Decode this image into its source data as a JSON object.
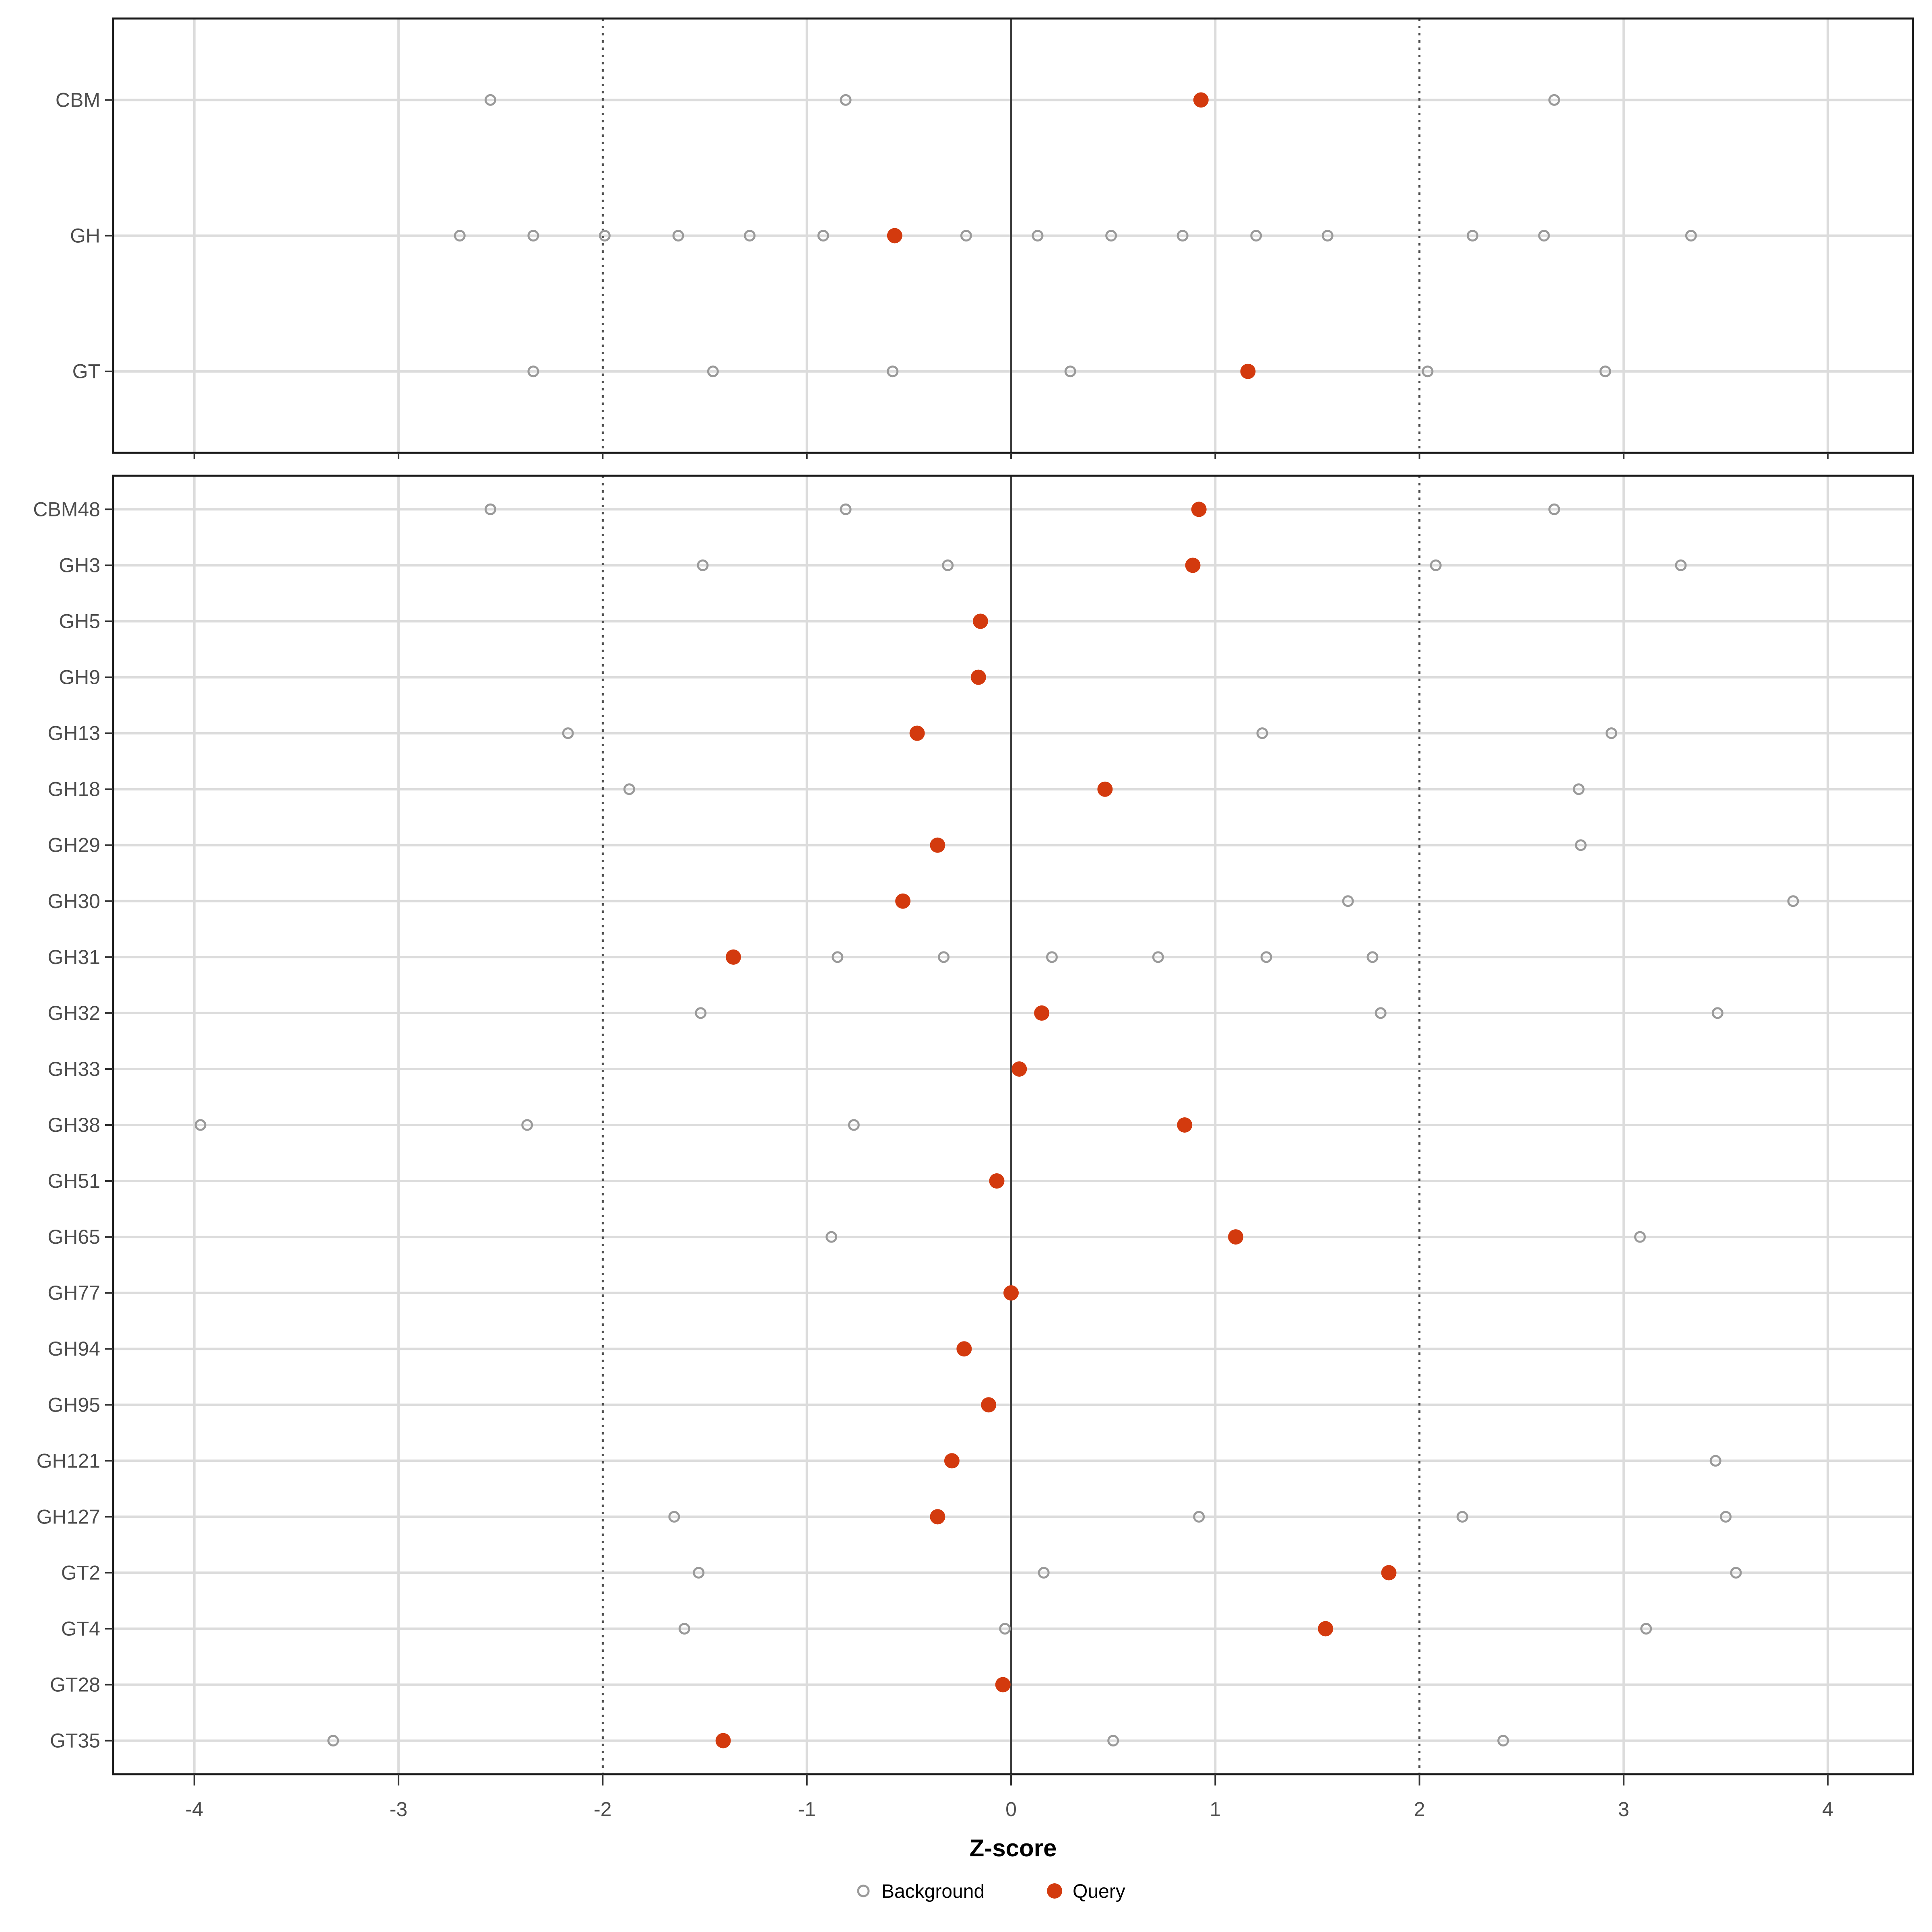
{
  "chart_data": {
    "type": "scatter",
    "title": "",
    "xlabel": "Z-score",
    "x_ticks": [
      -4,
      -3,
      -2,
      -1,
      0,
      1,
      2,
      3,
      4
    ],
    "xlim": [
      -4.4,
      4.42
    ],
    "grid": "on",
    "gridlines": {
      "solid_dark_at": 0,
      "dotted_at": [
        -2,
        2
      ],
      "light_at": [
        -4,
        -3,
        -1,
        1,
        3,
        4
      ]
    },
    "legend_position": "bottom",
    "legend": {
      "background_label": "Background",
      "query_label": "Query"
    },
    "colors": {
      "query": "#D33A0E",
      "background_stroke": "#9A9A9A",
      "grid_light": "#DCDCDC",
      "zero_line": "#3C3C3C",
      "dotted_line": "#4D4D4D",
      "panel_border": "#1A1A1A",
      "axis_text": "#4D4D4D",
      "title_text": "#000000"
    },
    "panels": [
      {
        "name": "category-summary",
        "rows": [
          {
            "label": "CBM",
            "background": [
              -2.55,
              -0.81,
              2.66
            ],
            "query": 0.93
          },
          {
            "label": "GH",
            "background": [
              -2.7,
              -2.34,
              -1.99,
              -1.63,
              -1.28,
              -0.92,
              -0.22,
              0.13,
              0.49,
              0.84,
              1.2,
              1.55,
              2.26,
              2.61,
              3.33
            ],
            "query": -0.57
          },
          {
            "label": "GT",
            "background": [
              -2.34,
              -1.46,
              -0.58,
              0.29,
              2.04,
              2.91
            ],
            "query": 1.16
          }
        ]
      },
      {
        "name": "family-detail",
        "rows": [
          {
            "label": "CBM48",
            "background": [
              -2.55,
              -0.81,
              2.66
            ],
            "query": 0.92
          },
          {
            "label": "GH3",
            "background": [
              -1.51,
              -0.31,
              2.08,
              3.28
            ],
            "query": 0.89
          },
          {
            "label": "GH5",
            "background": [],
            "query": -0.15
          },
          {
            "label": "GH9",
            "background": [],
            "query": -0.16
          },
          {
            "label": "GH13",
            "background": [
              -2.17,
              1.23,
              2.94
            ],
            "query": -0.46
          },
          {
            "label": "GH18",
            "background": [
              -1.87,
              2.78
            ],
            "query": 0.46
          },
          {
            "label": "GH29",
            "background": [
              2.79
            ],
            "query": -0.36
          },
          {
            "label": "GH30",
            "background": [
              1.65,
              3.83
            ],
            "query": -0.53
          },
          {
            "label": "GH31",
            "background": [
              -0.85,
              -0.33,
              0.2,
              0.72,
              1.25,
              1.77
            ],
            "query": -1.36
          },
          {
            "label": "GH32",
            "background": [
              -1.52,
              1.81,
              3.46
            ],
            "query": 0.15
          },
          {
            "label": "GH33",
            "background": [],
            "query": 0.04
          },
          {
            "label": "GH38",
            "background": [
              -3.97,
              -2.37,
              -0.77
            ],
            "query": 0.85
          },
          {
            "label": "GH51",
            "background": [],
            "query": -0.07
          },
          {
            "label": "GH65",
            "background": [
              -0.88,
              3.08
            ],
            "query": 1.1
          },
          {
            "label": "GH77",
            "background": [],
            "query": 0.0
          },
          {
            "label": "GH94",
            "background": [],
            "query": -0.23
          },
          {
            "label": "GH95",
            "background": [],
            "query": -0.11
          },
          {
            "label": "GH121",
            "background": [
              3.45
            ],
            "query": -0.29
          },
          {
            "label": "GH127",
            "background": [
              -1.65,
              0.92,
              2.21,
              3.5
            ],
            "query": -0.36
          },
          {
            "label": "GT2",
            "background": [
              -1.53,
              0.16,
              3.55
            ],
            "query": 1.85
          },
          {
            "label": "GT4",
            "background": [
              -1.6,
              -0.03,
              3.11
            ],
            "query": 1.54
          },
          {
            "label": "GT28",
            "background": [],
            "query": -0.04
          },
          {
            "label": "GT35",
            "background": [
              -3.32,
              0.5,
              2.41
            ],
            "query": -1.41
          }
        ]
      }
    ]
  }
}
